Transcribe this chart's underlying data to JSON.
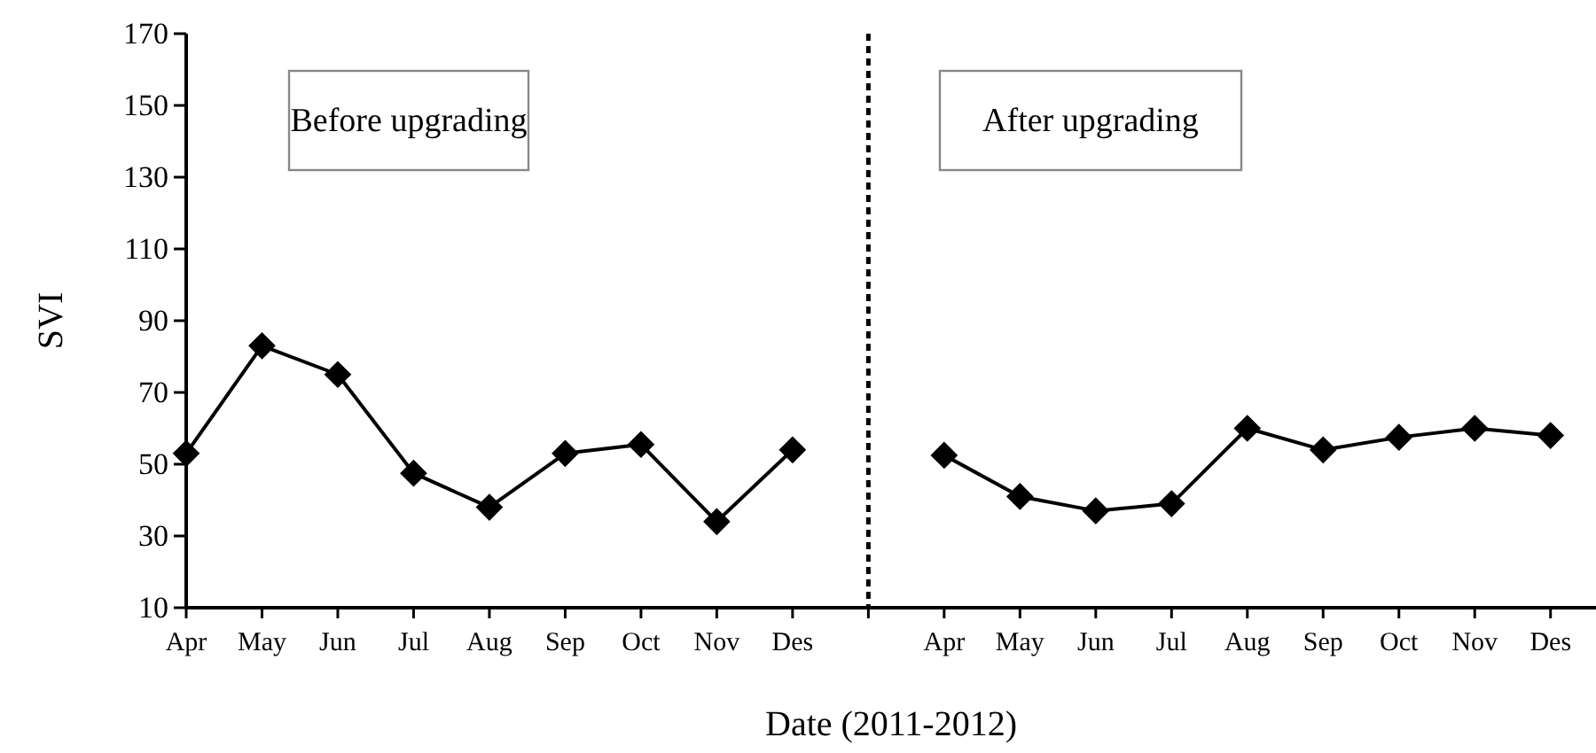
{
  "chart_data": {
    "type": "line",
    "xlabel": "Date (2011-2012)",
    "ylabel": "SVI",
    "ylim": [
      10,
      170
    ],
    "yticks": [
      10,
      30,
      50,
      70,
      90,
      110,
      130,
      150,
      170
    ],
    "categories": [
      "Apr",
      "May",
      "Jun",
      "Jul",
      "Aug",
      "Sep",
      "Oct",
      "Nov",
      "Des",
      null,
      "Apr",
      "May",
      "Jun",
      "Jul",
      "Aug",
      "Sep",
      "Oct",
      "Nov",
      "Des"
    ],
    "series": [
      {
        "color": "#000000",
        "values": [
          53,
          83,
          75,
          47.5,
          38,
          53,
          55.5,
          34,
          54,
          null,
          null,
          null,
          null,
          null,
          null,
          null,
          null,
          null,
          null
        ]
      },
      {
        "color": "#000000",
        "values": [
          null,
          null,
          null,
          null,
          null,
          null,
          null,
          null,
          null,
          null,
          52.5,
          41,
          37,
          39,
          60,
          54,
          57.5,
          60,
          58
        ]
      }
    ],
    "ref_lines": [
      {
        "axis": "x",
        "color": "#000000",
        "line_style": "dashed"
      }
    ],
    "annotations": [
      "Before upgrading",
      "After upgrading"
    ],
    "marker": "diamond",
    "line_style": "solid"
  }
}
